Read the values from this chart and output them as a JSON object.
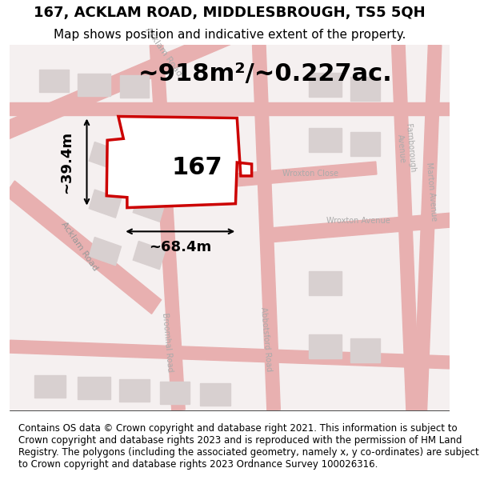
{
  "title": "167, ACKLAM ROAD, MIDDLESBROUGH, TS5 5QH",
  "subtitle": "Map shows position and indicative extent of the property.",
  "area_label": "~918m²/~0.227ac.",
  "width_label": "~68.4m",
  "height_label": "~39.4m",
  "property_number": "167",
  "footer_text": "Contains OS data © Crown copyright and database right 2021. This information is subject to Crown copyright and database rights 2023 and is reproduced with the permission of HM Land Registry. The polygons (including the associated geometry, namely x, y co-ordinates) are subject to Crown copyright and database rights 2023 Ordnance Survey 100026316.",
  "map_bg": "#f5f0f0",
  "road_color": "#e8b0b0",
  "building_color": "#d8d0d0",
  "property_outline_color": "#cc0000",
  "property_fill_color": "#ffffff",
  "dim_line_color": "#000000",
  "title_fontsize": 13,
  "subtitle_fontsize": 11,
  "area_fontsize": 22,
  "number_fontsize": 22,
  "dim_fontsize": 13,
  "footer_fontsize": 8.5
}
